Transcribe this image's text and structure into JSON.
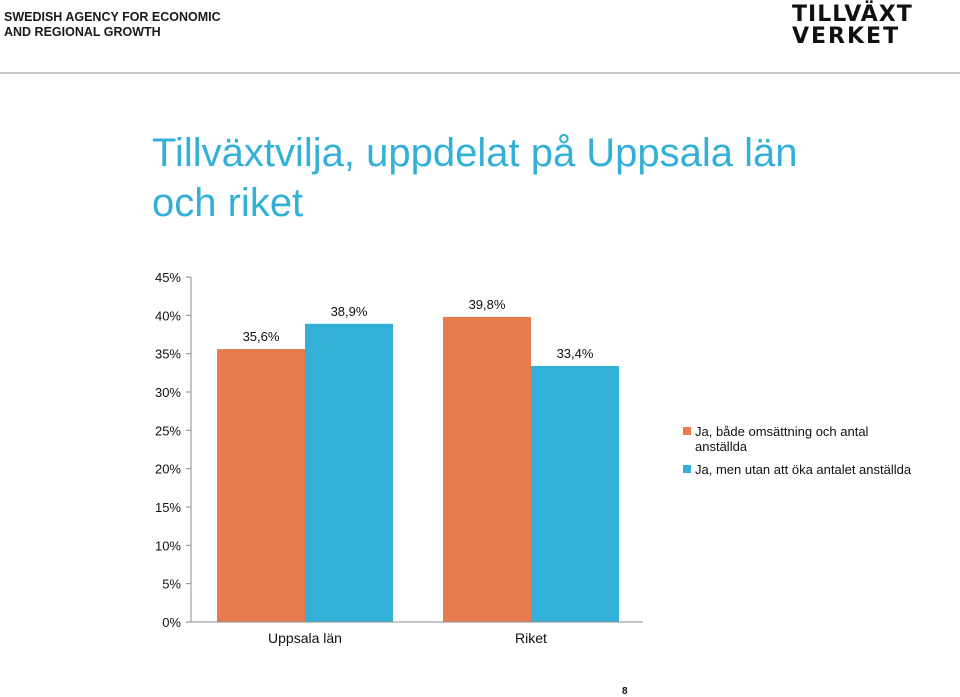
{
  "header": {
    "agency_line1": "SWEDISH AGENCY FOR ECONOMIC",
    "agency_line2": "AND REGIONAL GROWTH",
    "logo_line1": "TILLVÄXT",
    "logo_line2": "VERKET"
  },
  "title": "Tillväxtvilja, uppdelat på Uppsala län och riket",
  "chart_data": {
    "type": "bar",
    "categories": [
      "Uppsala län",
      "Riket"
    ],
    "series": [
      {
        "name": "Ja, både omsättning och antal anställda",
        "color": "#e67c4e",
        "values": [
          35.6,
          39.8
        ],
        "labels": [
          "35,6%",
          "39,8%"
        ]
      },
      {
        "name": "Ja, men utan att öka antalet anställda",
        "color": "#33b0d8",
        "values": [
          38.9,
          33.4
        ],
        "labels": [
          "38,9%",
          "33,4%"
        ]
      }
    ],
    "ylim": [
      0,
      45
    ],
    "yticks": [
      0,
      5,
      10,
      15,
      20,
      25,
      30,
      35,
      40,
      45
    ],
    "ytick_labels": [
      "0%",
      "5%",
      "10%",
      "15%",
      "20%",
      "25%",
      "30%",
      "35%",
      "40%",
      "45%"
    ],
    "legend_position": "right",
    "grid": false
  },
  "page_number": "8"
}
